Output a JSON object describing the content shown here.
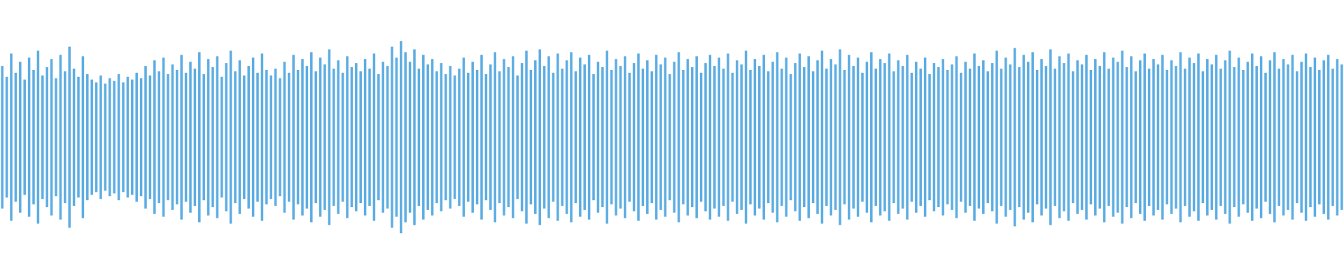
{
  "chart_data": {
    "type": "waveform",
    "color": "#5dade2",
    "ylim": [
      -1,
      1
    ],
    "values": [
      0.52,
      0.44,
      0.61,
      0.47,
      0.55,
      0.42,
      0.58,
      0.49,
      0.63,
      0.45,
      0.51,
      0.57,
      0.43,
      0.6,
      0.48,
      0.66,
      0.5,
      0.44,
      0.59,
      0.46,
      0.42,
      0.4,
      0.45,
      0.39,
      0.43,
      0.41,
      0.46,
      0.4,
      0.44,
      0.42,
      0.47,
      0.43,
      0.52,
      0.45,
      0.56,
      0.48,
      0.58,
      0.46,
      0.53,
      0.49,
      0.6,
      0.47,
      0.55,
      0.5,
      0.62,
      0.46,
      0.57,
      0.51,
      0.59,
      0.44,
      0.54,
      0.63,
      0.48,
      0.56,
      0.45,
      0.52,
      0.58,
      0.47,
      0.61,
      0.49,
      0.45,
      0.5,
      0.43,
      0.55,
      0.47,
      0.6,
      0.49,
      0.57,
      0.52,
      0.62,
      0.48,
      0.58,
      0.53,
      0.64,
      0.5,
      0.56,
      0.47,
      0.59,
      0.51,
      0.54,
      0.48,
      0.57,
      0.5,
      0.61,
      0.46,
      0.55,
      0.52,
      0.66,
      0.58,
      0.7,
      0.62,
      0.55,
      0.64,
      0.5,
      0.6,
      0.53,
      0.57,
      0.48,
      0.54,
      0.46,
      0.52,
      0.45,
      0.5,
      0.58,
      0.47,
      0.55,
      0.49,
      0.6,
      0.46,
      0.53,
      0.62,
      0.48,
      0.57,
      0.51,
      0.59,
      0.45,
      0.54,
      0.63,
      0.49,
      0.56,
      0.64,
      0.52,
      0.59,
      0.47,
      0.61,
      0.5,
      0.56,
      0.62,
      0.48,
      0.58,
      0.53,
      0.6,
      0.46,
      0.55,
      0.51,
      0.63,
      0.49,
      0.57,
      0.52,
      0.59,
      0.47,
      0.54,
      0.61,
      0.5,
      0.56,
      0.48,
      0.6,
      0.53,
      0.58,
      0.46,
      0.55,
      0.62,
      0.49,
      0.57,
      0.51,
      0.59,
      0.47,
      0.54,
      0.6,
      0.52,
      0.58,
      0.5,
      0.61,
      0.47,
      0.56,
      0.53,
      0.63,
      0.49,
      0.57,
      0.52,
      0.6,
      0.48,
      0.55,
      0.62,
      0.5,
      0.58,
      0.46,
      0.54,
      0.61,
      0.51,
      0.59,
      0.48,
      0.56,
      0.63,
      0.5,
      0.57,
      0.53,
      0.64,
      0.49,
      0.6,
      0.52,
      0.58,
      0.47,
      0.55,
      0.62,
      0.5,
      0.57,
      0.54,
      0.61,
      0.48,
      0.56,
      0.52,
      0.6,
      0.47,
      0.55,
      0.5,
      0.58,
      0.46,
      0.54,
      0.51,
      0.57,
      0.49,
      0.53,
      0.59,
      0.47,
      0.55,
      0.5,
      0.61,
      0.52,
      0.56,
      0.48,
      0.54,
      0.63,
      0.5,
      0.58,
      0.53,
      0.65,
      0.51,
      0.6,
      0.55,
      0.62,
      0.49,
      0.57,
      0.52,
      0.64,
      0.5,
      0.59,
      0.54,
      0.61,
      0.48,
      0.56,
      0.53,
      0.6,
      0.49,
      0.57,
      0.52,
      0.62,
      0.5,
      0.58,
      0.55,
      0.63,
      0.51,
      0.59,
      0.48,
      0.56,
      0.61,
      0.5,
      0.57,
      0.53,
      0.6,
      0.49,
      0.56,
      0.52,
      0.62,
      0.5,
      0.58,
      0.54,
      0.61,
      0.48,
      0.57,
      0.53,
      0.6,
      0.5,
      0.56,
      0.63,
      0.51,
      0.58,
      0.49,
      0.55,
      0.61,
      0.52,
      0.59,
      0.47,
      0.56,
      0.62,
      0.5,
      0.57,
      0.53,
      0.6,
      0.48,
      0.55,
      0.61,
      0.51,
      0.58,
      0.49,
      0.56,
      0.6,
      0.5,
      0.57,
      0.53
    ]
  }
}
